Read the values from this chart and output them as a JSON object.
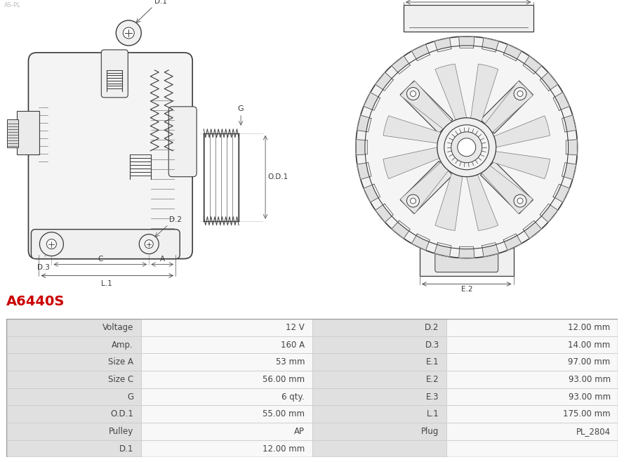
{
  "title": "A6440S",
  "title_color": "#cc0000",
  "bg_color": "#ffffff",
  "table_border_color": "#cccccc",
  "header_bg": "#e0e0e0",
  "value_bg": "#f8f8f8",
  "rows": [
    [
      "Voltage",
      "12 V",
      "D.2",
      "12.00 mm"
    ],
    [
      "Amp.",
      "160 A",
      "D.3",
      "14.00 mm"
    ],
    [
      "Size A",
      "53 mm",
      "E.1",
      "97.00 mm"
    ],
    [
      "Size C",
      "56.00 mm",
      "E.2",
      "93.00 mm"
    ],
    [
      "G",
      "6 qty.",
      "E.3",
      "93.00 mm"
    ],
    [
      "O.D.1",
      "55.00 mm",
      "L.1",
      "175.00 mm"
    ],
    [
      "Pulley",
      "AP",
      "Plug",
      "PL_2804"
    ],
    [
      "D.1",
      "12.00 mm",
      "",
      ""
    ]
  ],
  "dk": "#3a3a3a",
  "gray": "#777777",
  "lgray": "#aaaaaa",
  "dim_color": "#555555",
  "lw_main": 1.0,
  "lw_thin": 0.6,
  "lw_dim": 0.6
}
